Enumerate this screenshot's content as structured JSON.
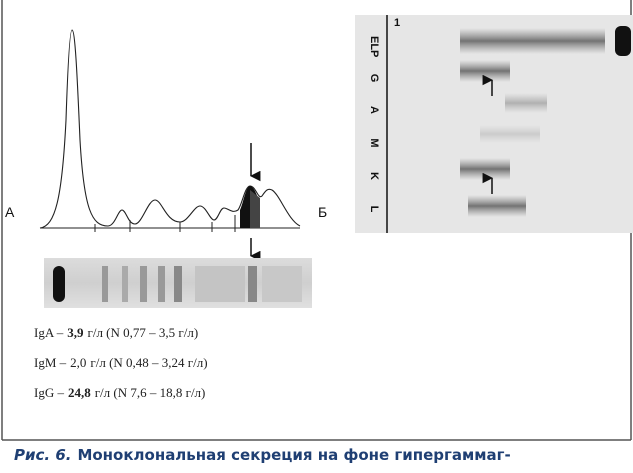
{
  "panel_a": {
    "label": "А"
  },
  "panel_b": {
    "label": "Б",
    "sample": "1",
    "lanes": [
      "ELP",
      "G",
      "A",
      "M",
      "K",
      "L"
    ]
  },
  "results": [
    {
      "name": "IgA –",
      "value": "3,9",
      "rest": "г/л (N 0,77 – 3,5 г/л)",
      "bold": true
    },
    {
      "name": "IgM –",
      "value": "2,0",
      "rest": "г/л (N 0,48 – 3,24 г/л)",
      "bold": false
    },
    {
      "name": "IgG –",
      "value": "24,8",
      "rest": "г/л (N 7,6 – 18,8 г/л)",
      "bold": true
    }
  ],
  "caption": {
    "label": "Рис. 6.",
    "text": "Моноклональная секреция на фоне гипергаммаг-"
  }
}
